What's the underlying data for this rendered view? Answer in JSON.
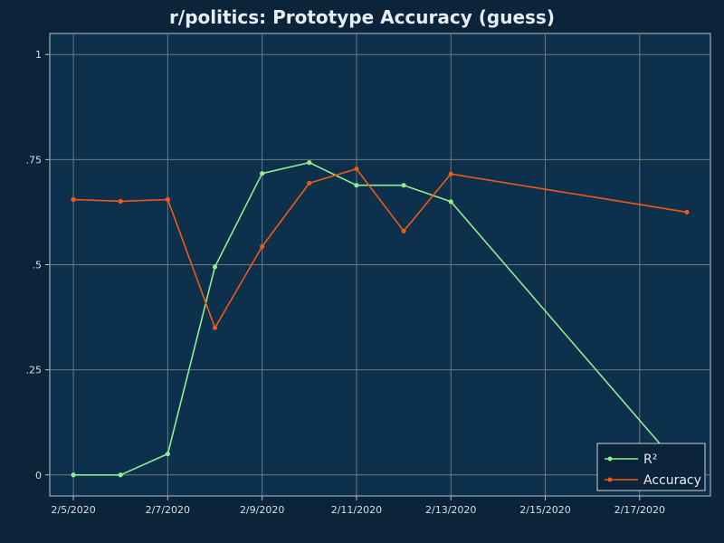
{
  "chart_data": {
    "type": "line",
    "title": "r/politics: Prototype Accuracy (guess)",
    "xlabel": "",
    "ylabel": "",
    "x_ticks": [
      "2/5/2020",
      "2/7/2020",
      "2/9/2020",
      "2/11/2020",
      "2/13/2020",
      "2/15/2020",
      "2/17/2020"
    ],
    "x_range": [
      "2020-02-04T12:00",
      "2020-02-18T12:00"
    ],
    "y_ticks": [
      "0",
      ".25",
      ".5",
      ".75",
      "1"
    ],
    "y_tick_values": [
      0,
      0.25,
      0.5,
      0.75,
      1
    ],
    "ylim": [
      -0.05,
      1.05
    ],
    "grid": true,
    "legend_position": "bottom-right",
    "series": [
      {
        "name": "R²",
        "color": "#90ee90",
        "points": [
          {
            "x": "2020-02-05",
            "y": 0.0
          },
          {
            "x": "2020-02-06",
            "y": 0.0
          },
          {
            "x": "2020-02-07",
            "y": 0.05
          },
          {
            "x": "2020-02-08",
            "y": 0.495
          },
          {
            "x": "2020-02-09",
            "y": 0.717
          },
          {
            "x": "2020-02-10",
            "y": 0.743
          },
          {
            "x": "2020-02-11",
            "y": 0.689
          },
          {
            "x": "2020-02-12",
            "y": 0.689
          },
          {
            "x": "2020-02-13",
            "y": 0.65
          },
          {
            "x": "2020-02-18",
            "y": 0.0
          }
        ]
      },
      {
        "name": "Accuracy",
        "color": "#f05a14",
        "points": [
          {
            "x": "2020-02-05",
            "y": 0.655
          },
          {
            "x": "2020-02-06",
            "y": 0.651
          },
          {
            "x": "2020-02-07",
            "y": 0.655
          },
          {
            "x": "2020-02-08",
            "y": 0.35
          },
          {
            "x": "2020-02-09",
            "y": 0.543
          },
          {
            "x": "2020-02-10",
            "y": 0.694
          },
          {
            "x": "2020-02-11",
            "y": 0.728
          },
          {
            "x": "2020-02-12",
            "y": 0.58
          },
          {
            "x": "2020-02-13",
            "y": 0.716
          },
          {
            "x": "2020-02-18",
            "y": 0.625
          }
        ]
      }
    ]
  },
  "colors": {
    "page_background": "#0b2439",
    "plot_background": "#0d304c",
    "grid": "#6f7780",
    "axis": "#b8c2cc",
    "text": "#e6eef5"
  }
}
